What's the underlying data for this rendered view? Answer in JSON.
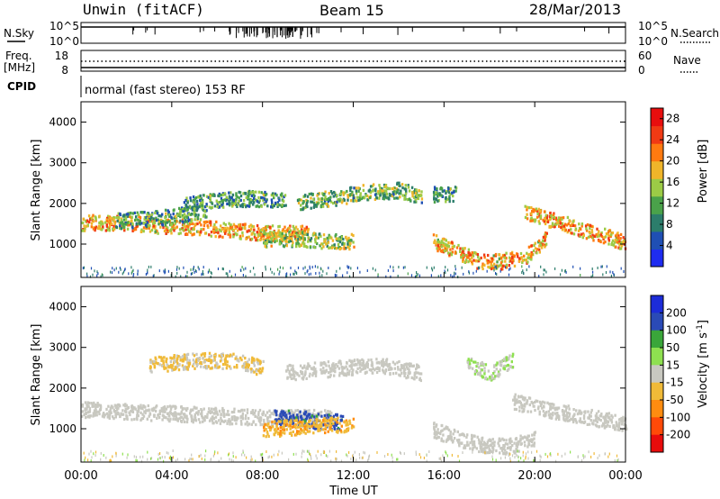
{
  "header": {
    "station": "Unwin (fitACF)",
    "beam": "Beam 15",
    "date": "28/Mar/2013"
  },
  "status_panels": {
    "nsky_label": "N.Sky",
    "nsky_ticks": [
      "10^5",
      "10^0"
    ],
    "nsearch_label": "N.Search",
    "nsearch_ticks": [
      "10^5",
      "10^0"
    ],
    "freq_label": "Freq.",
    "freq_unit": "[MHz]",
    "freq_ticks": [
      "18",
      "8"
    ],
    "nave_label": "Nave",
    "nave_ticks": [
      "60",
      "0"
    ],
    "cpid_label": "CPID",
    "cpid_text": "normal (fast stereo) 153 RF"
  },
  "colors": {
    "power_scale": [
      "#1e2cf0",
      "#1f4fb4",
      "#2c7d6b",
      "#4aa24a",
      "#9ccb46",
      "#f0b52a",
      "#ff7a10",
      "#f03a14",
      "#e80e0e"
    ],
    "velocity_scale": [
      "#e80c0c",
      "#ff4a08",
      "#ff8c10",
      "#f0ba38",
      "#c8c8c0",
      "#8ee050",
      "#3aa63a",
      "#2a4ab6",
      "#1c2cd8"
    ],
    "ground_scatter": "#c8c8c0"
  },
  "chart_data": [
    {
      "type": "heatmap",
      "panel": "power",
      "xlabel": "",
      "ylabel": "Slant Range [km]",
      "ylim": [
        180,
        4500
      ],
      "xlim_hours": [
        0,
        24
      ],
      "yticks": [
        "1000",
        "2000",
        "3000",
        "4000"
      ],
      "colorbar_label": "Power [dB]",
      "colorbar_ticks": [
        "4",
        "8",
        "12",
        "16",
        "20",
        "24",
        "28"
      ],
      "colorbar_range": [
        0,
        30
      ],
      "features": [
        {
          "name": "main band",
          "x_hours": [
            0,
            0.8,
            2,
            3,
            4,
            5,
            6,
            7,
            8,
            9,
            10
          ],
          "range_km": [
            1550,
            1560,
            1550,
            1500,
            1450,
            1450,
            1400,
            1350,
            1300,
            1300,
            1300
          ],
          "power_db": 20
        },
        {
          "name": "upper band A",
          "x_hours": [
            1.5,
            3,
            4,
            5,
            5.5
          ],
          "range_km": [
            1600,
            1650,
            1700,
            1800,
            1850
          ],
          "power_db": 10
        },
        {
          "name": "upper band B",
          "x_hours": [
            4.5,
            6,
            7.5,
            9
          ],
          "range_km": [
            2000,
            2100,
            2150,
            2100
          ],
          "power_db": 10
        },
        {
          "name": "upper band C",
          "x_hours": [
            9.5,
            11,
            12.5,
            14,
            15
          ],
          "range_km": [
            2050,
            2150,
            2300,
            2350,
            2200
          ],
          "power_db": 12
        },
        {
          "name": "upper band D",
          "x_hours": [
            15.5,
            16.5
          ],
          "range_km": [
            2250,
            2250
          ],
          "power_db": 10
        },
        {
          "name": "lower band",
          "x_hours": [
            8,
            9.5,
            11,
            12
          ],
          "range_km": [
            1150,
            1150,
            1100,
            1100
          ],
          "power_db": 14
        },
        {
          "name": "lower band E",
          "x_hours": [
            15.5,
            16.5,
            17.5,
            18.5,
            19.5,
            20,
            20.5
          ],
          "range_km": [
            1100,
            850,
            600,
            600,
            700,
            900,
            1200
          ],
          "power_db": 20
        },
        {
          "name": "late band",
          "x_hours": [
            19.5,
            20.5,
            21.5,
            22.5,
            23.5,
            24
          ],
          "range_km": [
            1800,
            1650,
            1500,
            1300,
            1150,
            1050
          ],
          "power_db": 20
        }
      ]
    },
    {
      "type": "heatmap",
      "panel": "velocity",
      "xlabel": "Time UT",
      "ylabel": "Slant Range [km]",
      "ylim": [
        180,
        4500
      ],
      "xlim_hours": [
        0,
        24
      ],
      "xticks": [
        "00:00",
        "04:00",
        "08:00",
        "12:00",
        "16:00",
        "20:00",
        "00:00"
      ],
      "yticks": [
        "1000",
        "2000",
        "3000",
        "4000"
      ],
      "colorbar_label": "Velocity [m s^-1]",
      "colorbar_ticks": [
        "200",
        "100",
        "50",
        "15",
        "-15",
        "-50",
        "-100",
        "-200"
      ],
      "colorbar_range": [
        -250,
        250
      ],
      "features": [
        {
          "name": "ground scatter",
          "x_hours": [
            0,
            2,
            4,
            6,
            8,
            10,
            11
          ],
          "range_km": [
            1500,
            1450,
            1400,
            1350,
            1300,
            1300,
            1300
          ],
          "velocity_ms": 0
        },
        {
          "name": "blue patch",
          "x_hours": [
            8.5,
            9.5,
            10.5,
            11.5
          ],
          "range_km": [
            1300,
            1300,
            1200,
            1200
          ],
          "velocity_ms": 180
        },
        {
          "name": "orange patch",
          "x_hours": [
            8,
            9,
            10,
            12
          ],
          "range_km": [
            1000,
            1050,
            1100,
            1150
          ],
          "velocity_ms": -80
        },
        {
          "name": "upper orange",
          "x_hours": [
            3,
            5,
            7,
            8
          ],
          "range_km": [
            2600,
            2700,
            2700,
            2500
          ],
          "velocity_ms": -40
        },
        {
          "name": "upper grey",
          "x_hours": [
            9,
            11,
            13,
            15
          ],
          "range_km": [
            2400,
            2500,
            2600,
            2400
          ],
          "velocity_ms": 0
        },
        {
          "name": "lower ground",
          "x_hours": [
            15.5,
            17,
            18,
            19,
            20
          ],
          "range_km": [
            1000,
            700,
            600,
            600,
            800
          ],
          "velocity_ms": 0
        },
        {
          "name": "late grey",
          "x_hours": [
            19,
            20.5,
            22,
            23.5,
            24
          ],
          "range_km": [
            1700,
            1500,
            1350,
            1200,
            1150
          ],
          "velocity_ms": 0
        },
        {
          "name": "green patch",
          "x_hours": [
            17,
            18,
            19
          ],
          "range_km": [
            2600,
            2400,
            2700
          ],
          "velocity_ms": 30
        }
      ]
    }
  ]
}
